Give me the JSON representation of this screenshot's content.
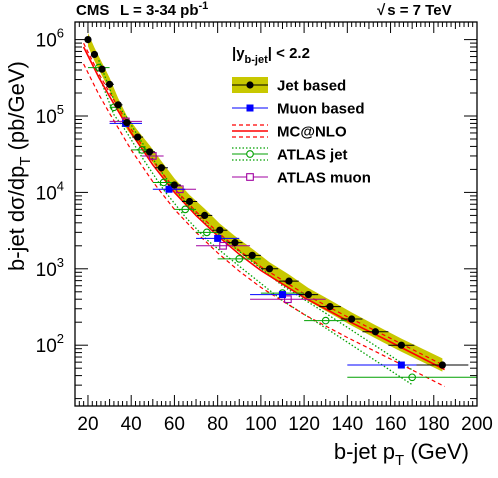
{
  "header": {
    "experiment": "CMS",
    "lumi_prefix": "L = 3-34 pb",
    "lumi_exp": "-1",
    "energy_sym": "√",
    "energy_text": "s = 7 TeV"
  },
  "chart_data": {
    "type": "scatter",
    "title": "",
    "xlabel": "b-jet p",
    "xlabel_sub": "T",
    "xlabel_unit": " (GeV)",
    "ylabel": "b-jet dσ/dp",
    "ylabel_sub": "T",
    "ylabel_unit": "  (pb/GeV)",
    "xlim": [
      14,
      200
    ],
    "ylim": [
      16,
      1700000
    ],
    "yscale": "log",
    "xticks": [
      20,
      40,
      60,
      80,
      100,
      120,
      140,
      160,
      180,
      200
    ],
    "xtick_labels": [
      "20",
      "40",
      "60",
      "80",
      "100",
      "120",
      "140",
      "160",
      "180",
      "200"
    ],
    "yticks": [
      100,
      1000,
      10000,
      100000,
      1000000
    ],
    "ytick_labels": [
      {
        "base": "10",
        "exp": "2"
      },
      {
        "base": "10",
        "exp": "3"
      },
      {
        "base": "10",
        "exp": "4"
      },
      {
        "base": "10",
        "exp": "5"
      },
      {
        "base": "10",
        "exp": "6"
      }
    ],
    "selection_label": {
      "main": "|y",
      "sub": "b-jet",
      "rest": "| < 2.2"
    },
    "legend_position": "top-right",
    "legend": [
      {
        "label": "Jet based",
        "style": "band-marker",
        "color": "#000000",
        "band": "#c8c800"
      },
      {
        "label": "Muon based",
        "style": "square",
        "color": "#0000ff"
      },
      {
        "label": "MC@NLO",
        "style": "line-band",
        "color": "#ff0000"
      },
      {
        "label": "ATLAS jet",
        "style": "open-circle",
        "color": "#00a000"
      },
      {
        "label": "ATLAS muon",
        "style": "open-square",
        "color": "#a000a0"
      }
    ],
    "series": [
      {
        "name": "Jet based",
        "color": "#000000",
        "band_color": "#c8c800",
        "x": [
          20,
          23,
          26.5,
          30,
          34,
          38,
          43,
          48.5,
          54,
          60,
          67,
          74,
          81,
          88,
          96,
          104,
          113,
          122,
          132,
          142,
          153,
          165,
          184
        ],
        "y": [
          1000000,
          640000,
          410000,
          260000,
          140000,
          82000,
          53000,
          34000,
          21000,
          12500,
          7600,
          5000,
          3200,
          2200,
          1500,
          1000,
          690,
          460,
          320,
          220,
          150,
          100,
          55
        ],
        "xerr": [
          1,
          1.5,
          1.5,
          2,
          2,
          2,
          2.5,
          2.5,
          3,
          3,
          3.5,
          3.5,
          3.5,
          3.5,
          4,
          4,
          4.5,
          4.5,
          5,
          5,
          6,
          6,
          12
        ],
        "band_rel_lo": 0.82,
        "band_rel_hi": 1.22
      },
      {
        "name": "Muon based",
        "color": "#0000ff",
        "x": [
          37.5,
          57.5,
          80,
          110,
          165
        ],
        "y": [
          80000,
          11000,
          2500,
          460,
          55
        ],
        "xerr": [
          7.5,
          7.5,
          10,
          15,
          25
        ]
      },
      {
        "name": "MC@NLO",
        "color": "#ff0000",
        "x": [
          18,
          25,
          30,
          40,
          50,
          60,
          70,
          80,
          90,
          100,
          120,
          140,
          160,
          185
        ],
        "y": [
          800000,
          320000,
          180000,
          60000,
          23000,
          10000,
          5000,
          2700,
          1550,
          950,
          420,
          210,
          110,
          48
        ],
        "rel_lo": 0.6,
        "rel_hi": 1.12
      },
      {
        "name": "ATLAS jet",
        "color": "#00a000",
        "x": [
          25,
          32,
          37.5,
          45,
          55,
          65,
          75,
          90,
          110,
          130,
          170
        ],
        "y": [
          430000,
          130000,
          80000,
          36000,
          13500,
          6000,
          3000,
          1350,
          480,
          210,
          38
        ],
        "xerr": [
          5,
          2,
          2.5,
          5,
          5,
          5,
          5,
          10,
          10,
          10,
          30
        ],
        "band_rel_lo": 0.8,
        "band_rel_hi": 1.25
      },
      {
        "name": "ATLAS muon",
        "color": "#a000a0",
        "x": [
          37.5,
          50,
          62.5,
          82.5,
          112.5
        ],
        "y": [
          85000,
          30000,
          11000,
          2000,
          400
        ],
        "xerr": [
          7.5,
          5,
          7.5,
          12.5,
          17.5
        ]
      }
    ]
  }
}
